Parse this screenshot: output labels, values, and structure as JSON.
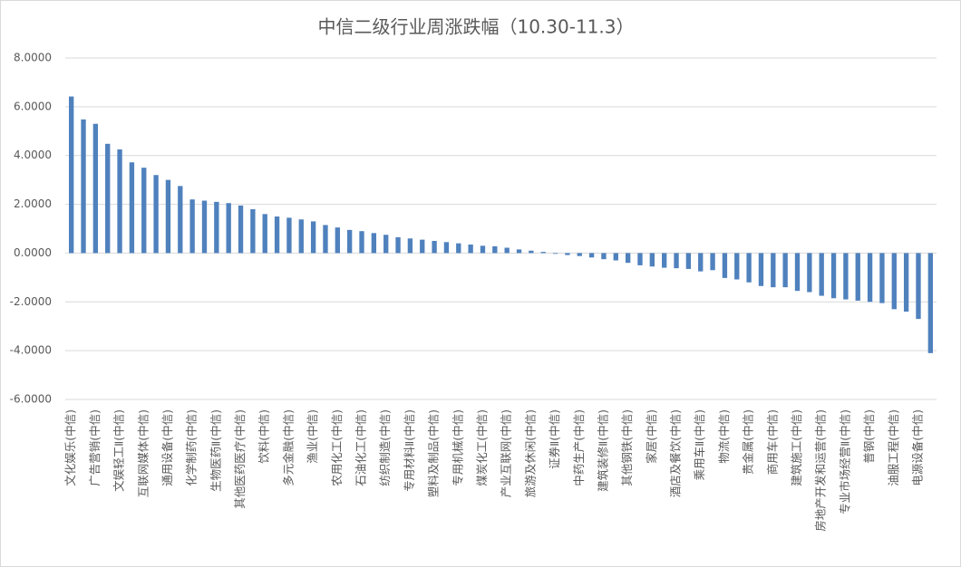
{
  "chart_data": {
    "type": "bar",
    "title": "中信二级行业周涨跌幅（10.30-11.3）",
    "categories": [
      "文化娱乐(中信)",
      null,
      "广告营销(中信)",
      null,
      "文娱轻工Ⅱ(中信)",
      null,
      "互联网媒体(中信)",
      null,
      "通用设备(中信)",
      null,
      "化学制药(中信)",
      null,
      "生物医药Ⅱ(中信)",
      null,
      "其他医药医疗(中信)",
      null,
      "饮料(中信)",
      null,
      "多元金融(中信)",
      null,
      "渔业(中信)",
      null,
      "农用化工(中信)",
      null,
      "石油化工(中信)",
      null,
      "纺织制造(中信)",
      null,
      "专用材料Ⅱ(中信)",
      null,
      "塑料及制品(中信)",
      null,
      "专用机械(中信)",
      null,
      "煤炭化工(中信)",
      null,
      "产业互联网(中信)",
      null,
      "旅游及休闲(中信)",
      null,
      "证券Ⅱ(中信)",
      null,
      "中药生产(中信)",
      null,
      "建筑装修Ⅱ(中信)",
      null,
      "其他钢铁(中信)",
      null,
      "家居(中信)",
      null,
      "酒店及餐饮(中信)",
      null,
      "乘用车Ⅱ(中信)",
      null,
      "物流(中信)",
      null,
      "贵金属(中信)",
      null,
      "商用车(中信)",
      null,
      "建筑施工(中信)",
      null,
      "房地产开发和运营(中信)",
      null,
      "专业市场经营Ⅱ(中信)",
      null,
      "普钢(中信)",
      null,
      "油服工程(中信)",
      null,
      "电源设备(中信)",
      null
    ],
    "values": [
      6.42,
      5.48,
      5.3,
      4.48,
      4.25,
      3.72,
      3.5,
      3.2,
      3.0,
      2.75,
      2.2,
      2.15,
      2.1,
      2.05,
      1.95,
      1.8,
      1.6,
      1.5,
      1.45,
      1.38,
      1.3,
      1.15,
      1.05,
      0.95,
      0.9,
      0.82,
      0.75,
      0.65,
      0.6,
      0.55,
      0.5,
      0.45,
      0.4,
      0.35,
      0.3,
      0.28,
      0.22,
      0.15,
      0.1,
      0.05,
      -0.03,
      -0.08,
      -0.12,
      -0.18,
      -0.25,
      -0.3,
      -0.4,
      -0.5,
      -0.55,
      -0.6,
      -0.62,
      -0.65,
      -0.75,
      -0.7,
      -1.02,
      -1.08,
      -1.2,
      -1.35,
      -1.4,
      -1.4,
      -1.55,
      -1.6,
      -1.75,
      -1.85,
      -1.9,
      -1.95,
      -2.0,
      -2.05,
      -2.3,
      -2.4,
      -2.7,
      -4.1
    ],
    "color": "#4f81bd",
    "ylim": [
      -6,
      8
    ],
    "yticks": [
      {
        "value": 8,
        "label": "8.0000"
      },
      {
        "value": 6,
        "label": "6.0000"
      },
      {
        "value": 4,
        "label": "4.0000"
      },
      {
        "value": 2,
        "label": "2.0000"
      },
      {
        "value": 0,
        "label": "0.0000"
      },
      {
        "value": -2,
        "label": "-2.0000"
      },
      {
        "value": -4,
        "label": "-4.0000"
      },
      {
        "value": -6,
        "label": "-6.0000"
      }
    ],
    "grid": true
  }
}
